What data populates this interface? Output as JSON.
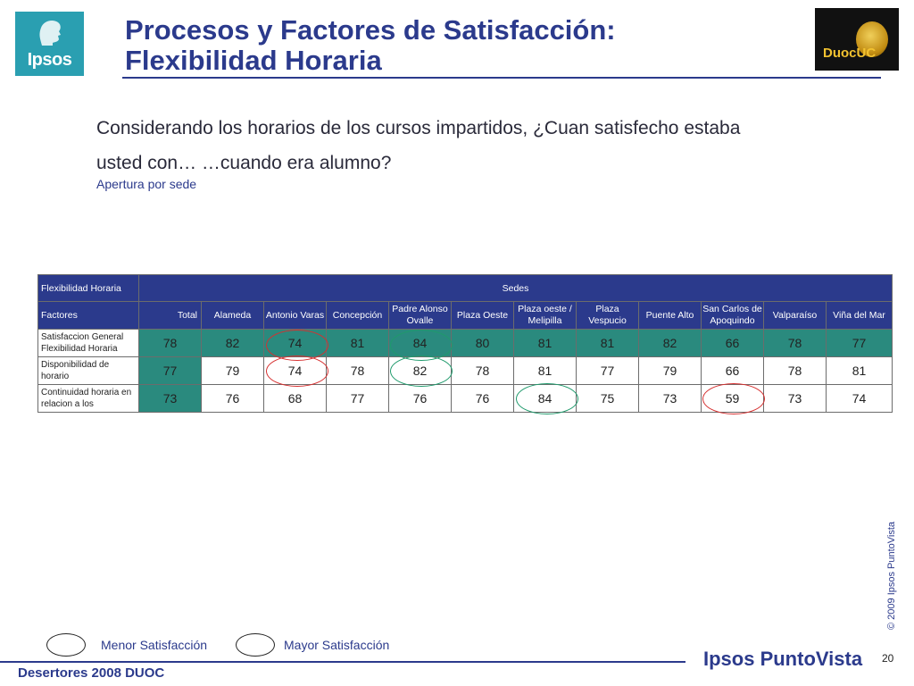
{
  "header": {
    "title_line1": "Procesos y Factores de Satisfacción:",
    "title_line2": "Flexibilidad Horaria",
    "ipsos_logo_text": "Ipsos",
    "duoc_logo_text": "DuocUC"
  },
  "question": "Considerando los horarios de los cursos impartidos, ¿Cuan satisfecho estaba usted con… …cuando era alumno?",
  "subtitle": "Apertura por sede",
  "table": {
    "group_label": "Flexibilidad Horaria",
    "group_header": "Sedes",
    "factor_header": "Factores",
    "columns": [
      "Total",
      "Alameda",
      "Antonio Varas",
      "Concepción",
      "Padre Alonso Ovalle",
      "Plaza Oeste",
      "Plaza oeste / Melipilla",
      "Plaza Vespucio",
      "Puente Alto",
      "San Carlos de Apoquindo",
      "Valparaíso",
      "Viña del Mar"
    ],
    "rows": [
      {
        "label": "Satisfaccion General Flexibilidad Horaria",
        "values": [
          "78",
          "82",
          "74",
          "81",
          "84",
          "80",
          "81",
          "81",
          "82",
          "66",
          "78",
          "77"
        ]
      },
      {
        "label": "Disponibilidad de horario",
        "values": [
          "77",
          "79",
          "74",
          "78",
          "82",
          "78",
          "81",
          "77",
          "79",
          "66",
          "78",
          "81"
        ]
      },
      {
        "label": "Continuidad horaria en relacion a los",
        "values": [
          "73",
          "76",
          "68",
          "77",
          "76",
          "76",
          "84",
          "75",
          "73",
          "59",
          "73",
          "74"
        ]
      }
    ]
  },
  "legend": {
    "low": "Menor Satisfacción",
    "high": "Mayor Satisfacción"
  },
  "colors": {
    "navy": "#2b3a8c",
    "teal": "#2a8a7e",
    "low_circle": "#d63030",
    "high_circle": "#1f9a6c"
  },
  "copyright": "© 2009 Ipsos PuntoVista",
  "footer": {
    "left": "Desertores 2008 DUOC",
    "brand": "Ipsos PuntoVista",
    "page_number": "20"
  }
}
